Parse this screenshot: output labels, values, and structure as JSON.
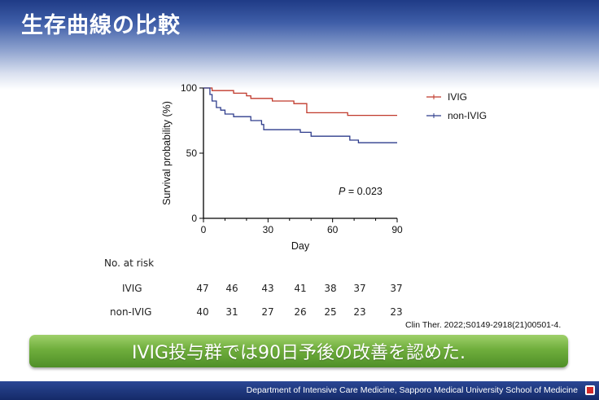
{
  "slide": {
    "title": "生存曲線の比較",
    "conclusion": "IVIG投与群では90日予後の改善を認めた.",
    "citation": "Clin Ther. 2022;S0149-2918(21)00501-4.",
    "footer": "Department of Intensive Care Medicine, Sapporo Medical University School of Medicine"
  },
  "risk_table": {
    "title": "No. at risk",
    "rows": [
      {
        "label": "IVIG",
        "values": [
          47,
          46,
          43,
          41,
          38,
          37,
          37
        ]
      },
      {
        "label": "non-IVIG",
        "values": [
          40,
          31,
          27,
          26,
          25,
          23,
          23
        ]
      }
    ]
  },
  "chart_data": {
    "type": "line",
    "subtype": "kaplan-meier",
    "xlabel": "Day",
    "ylabel": "Survival probability (%)",
    "xlim": [
      0,
      90
    ],
    "ylim": [
      0,
      100
    ],
    "xticks": [
      0,
      30,
      60,
      90
    ],
    "yticks": [
      0,
      50,
      100
    ],
    "annotation": {
      "p_label": "P",
      "p_value": "= 0.023"
    },
    "legend_position": "top-right",
    "grid": false,
    "series": [
      {
        "name": "IVIG",
        "color": "#c0392b",
        "steps": [
          [
            0,
            100
          ],
          [
            4,
            98
          ],
          [
            14,
            96
          ],
          [
            20,
            94
          ],
          [
            22,
            92
          ],
          [
            32,
            90
          ],
          [
            42,
            88
          ],
          [
            48,
            81
          ],
          [
            67,
            79
          ],
          [
            90,
            79
          ]
        ]
      },
      {
        "name": "non-IVIG",
        "color": "#2e3c8c",
        "steps": [
          [
            0,
            100
          ],
          [
            3,
            95
          ],
          [
            4,
            90
          ],
          [
            6,
            85
          ],
          [
            8,
            83
          ],
          [
            10,
            80
          ],
          [
            14,
            78
          ],
          [
            22,
            75
          ],
          [
            27,
            72
          ],
          [
            28,
            68
          ],
          [
            45,
            66
          ],
          [
            50,
            63
          ],
          [
            68,
            60
          ],
          [
            72,
            58
          ],
          [
            90,
            58
          ]
        ]
      }
    ]
  }
}
